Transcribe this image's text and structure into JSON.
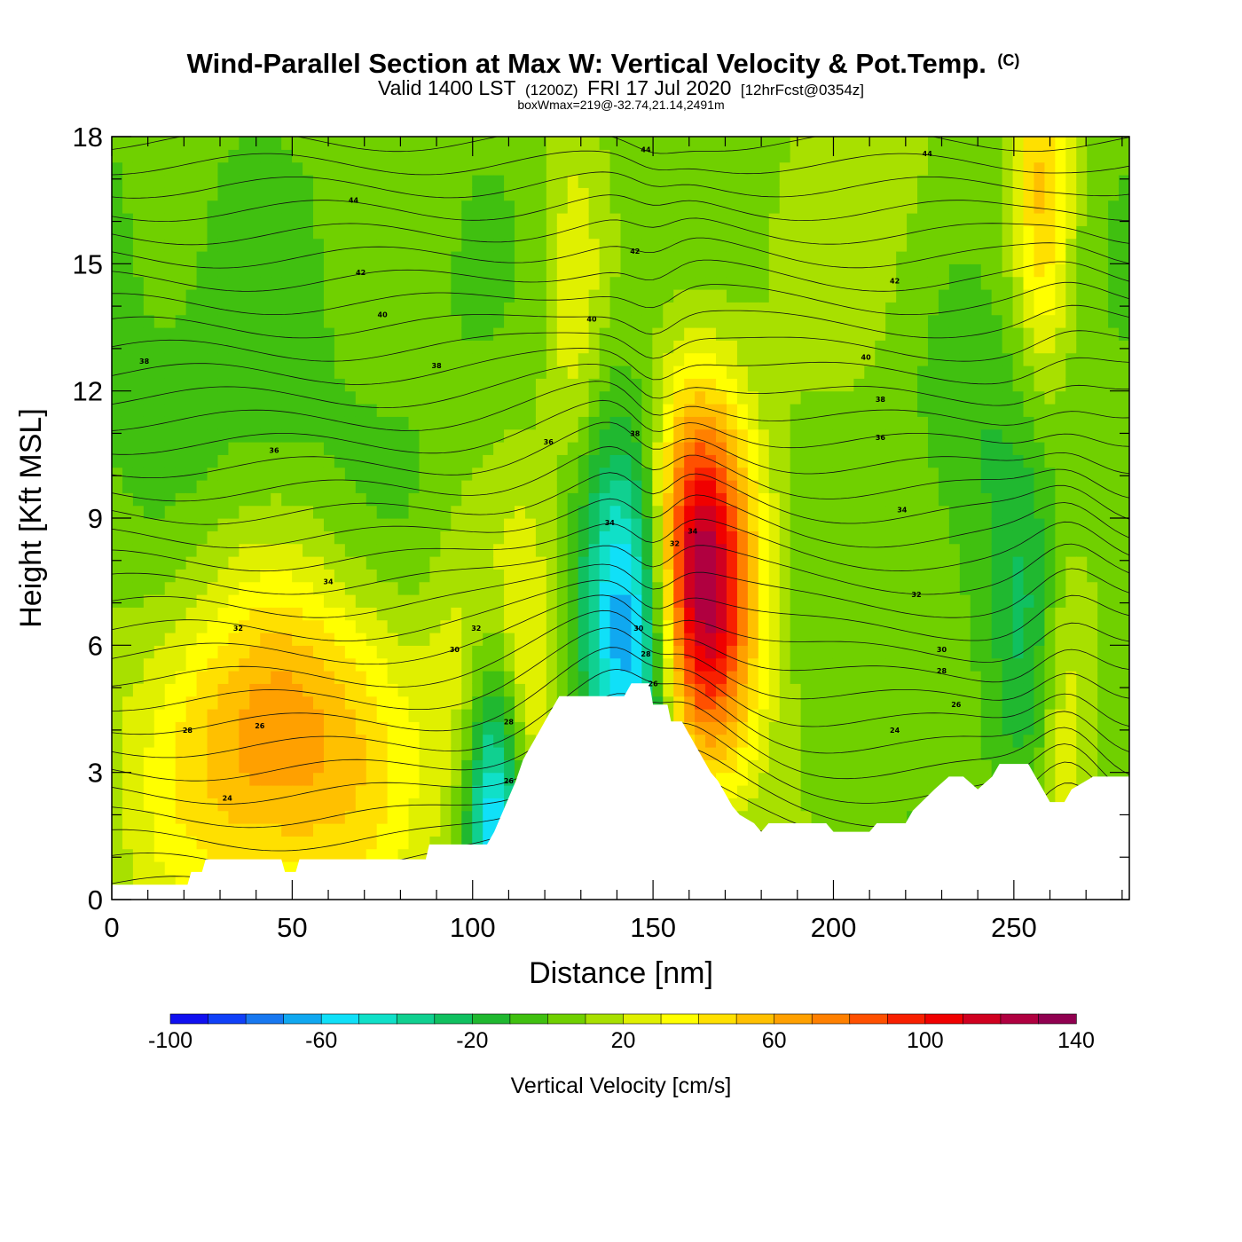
{
  "header": {
    "title": "Wind-Parallel Section at Max W: Vertical Velocity & Pot.Temp.",
    "copyright": "(C)",
    "subtitle_a": "Valid 1400 LST",
    "subtitle_b": "(1200Z)",
    "subtitle_c": "FRI 17 Jul 2020",
    "subtitle_d": "[12hrFcst@0354z]",
    "subtitle_line3": "boxWmax=219@-32.74,21.14,2491m"
  },
  "chart_data": {
    "type": "contour",
    "xlabel": "Distance [nm]",
    "ylabel": "Height [Kft MSL]",
    "xlim": [
      0,
      282
    ],
    "ylim": [
      0,
      18
    ],
    "x_ticks": [
      "0",
      "50",
      "100",
      "150",
      "200",
      "250"
    ],
    "y_ticks": [
      "0",
      "3",
      "6",
      "9",
      "12",
      "15",
      "18"
    ],
    "x_tick_values": [
      0,
      50,
      100,
      150,
      200,
      250
    ],
    "y_tick_values": [
      0,
      3,
      6,
      9,
      12,
      15,
      18
    ],
    "colorbar": {
      "title": "Vertical Velocity [cm/s]",
      "labels": [
        "-100",
        "-60",
        "-20",
        "20",
        "60",
        "100",
        "140"
      ],
      "label_values": [
        -100,
        -60,
        -20,
        20,
        60,
        100,
        140
      ],
      "range": [
        -100,
        140
      ],
      "step": 10,
      "colors": [
        "#1010f0",
        "#1040f8",
        "#1878f0",
        "#10a8f0",
        "#10e0f8",
        "#10e0c8",
        "#10d090",
        "#10c060",
        "#20b830",
        "#40c010",
        "#70d000",
        "#a8e000",
        "#e0f000",
        "#ffff00",
        "#ffe000",
        "#ffc000",
        "#ffa000",
        "#ff8000",
        "#ff5000",
        "#f82000",
        "#f00000",
        "#d00020",
        "#b00040",
        "#900050"
      ]
    },
    "terrain_profile": {
      "x": [
        0,
        21,
        22,
        25,
        26,
        47,
        48,
        51,
        52,
        87,
        88,
        104,
        106,
        108,
        110,
        112,
        114,
        116,
        118,
        120,
        122,
        124,
        142,
        144,
        149,
        150,
        154,
        155,
        158,
        160,
        162,
        164,
        166,
        168,
        170,
        172,
        174,
        178,
        180,
        182,
        198,
        200,
        210,
        212,
        220,
        222,
        228,
        232,
        236,
        240,
        244,
        246,
        254,
        256,
        258,
        260,
        264,
        266,
        272,
        282
      ],
      "y": [
        0.35,
        0.35,
        0.65,
        0.65,
        0.95,
        0.95,
        0.65,
        0.65,
        0.95,
        0.95,
        1.3,
        1.3,
        1.6,
        2.0,
        2.4,
        2.8,
        3.3,
        3.6,
        3.9,
        4.2,
        4.5,
        4.8,
        4.8,
        5.1,
        5.1,
        4.6,
        4.6,
        4.2,
        4.2,
        3.9,
        3.6,
        3.3,
        3.0,
        2.8,
        2.5,
        2.2,
        2.0,
        1.8,
        1.6,
        1.8,
        1.8,
        1.6,
        1.6,
        1.8,
        1.8,
        2.1,
        2.6,
        2.9,
        2.9,
        2.6,
        2.9,
        3.2,
        3.2,
        2.9,
        2.6,
        2.3,
        2.3,
        2.6,
        2.9,
        2.9
      ]
    },
    "w_features": [
      {
        "x": 40,
        "y": 3.8,
        "w": 35,
        "value": 55
      },
      {
        "x": 68,
        "y": 4.5,
        "w": 30,
        "value": 25
      },
      {
        "x": 110,
        "y": 5.5,
        "w": 15,
        "value": 40
      },
      {
        "x": 128,
        "y": 14.0,
        "w": 8,
        "value": 20
      },
      {
        "x": 147,
        "y": 6.5,
        "w": 15,
        "value": -95
      },
      {
        "x": 161,
        "y": 7.5,
        "w": 14,
        "value": 140
      },
      {
        "x": 258,
        "y": 17.0,
        "w": 8,
        "value": 45
      },
      {
        "x": 263,
        "y": 4.5,
        "w": 8,
        "value": 30
      },
      {
        "x": 215,
        "y": 16.0,
        "w": 25,
        "value": 15
      },
      {
        "x": 106,
        "y": 2.3,
        "w": 8,
        "value": -80
      },
      {
        "x": 175,
        "y": 6.5,
        "w": 15,
        "value": 20
      },
      {
        "x": 60,
        "y": 8.0,
        "w": 45,
        "value": -15
      },
      {
        "x": 240,
        "y": 12.0,
        "w": 20,
        "value": -15
      },
      {
        "x": 10,
        "y": 14.0,
        "w": 40,
        "value": -8
      },
      {
        "x": 255,
        "y": 5.5,
        "w": 10,
        "value": -25
      }
    ],
    "pot_temp_labels": [
      {
        "text": "44",
        "x": 67,
        "y": 16.5
      },
      {
        "text": "42",
        "x": 69,
        "y": 14.8
      },
      {
        "text": "40",
        "x": 75,
        "y": 13.8
      },
      {
        "text": "38",
        "x": 9,
        "y": 12.7
      },
      {
        "text": "38",
        "x": 90,
        "y": 12.6
      },
      {
        "text": "36",
        "x": 45,
        "y": 10.6
      },
      {
        "text": "34",
        "x": 60,
        "y": 7.5
      },
      {
        "text": "32",
        "x": 35,
        "y": 6.4
      },
      {
        "text": "30",
        "x": 95,
        "y": 5.9
      },
      {
        "text": "28",
        "x": 21,
        "y": 4.0
      },
      {
        "text": "26",
        "x": 41,
        "y": 4.1
      },
      {
        "text": "24",
        "x": 32,
        "y": 2.4
      },
      {
        "text": "32",
        "x": 101,
        "y": 6.4
      },
      {
        "text": "28",
        "x": 110,
        "y": 4.2
      },
      {
        "text": "26",
        "x": 110,
        "y": 2.8
      },
      {
        "text": "36",
        "x": 121,
        "y": 10.8
      },
      {
        "text": "40",
        "x": 133,
        "y": 13.7
      },
      {
        "text": "34",
        "x": 138,
        "y": 8.9
      },
      {
        "text": "44",
        "x": 148,
        "y": 17.7
      },
      {
        "text": "42",
        "x": 145,
        "y": 15.3
      },
      {
        "text": "38",
        "x": 145,
        "y": 11.0
      },
      {
        "text": "30",
        "x": 146,
        "y": 6.4
      },
      {
        "text": "28",
        "x": 148,
        "y": 5.8
      },
      {
        "text": "26",
        "x": 150,
        "y": 5.1
      },
      {
        "text": "32",
        "x": 156,
        "y": 8.4
      },
      {
        "text": "34",
        "x": 161,
        "y": 8.7
      },
      {
        "text": "44",
        "x": 226,
        "y": 17.6
      },
      {
        "text": "42",
        "x": 217,
        "y": 14.6
      },
      {
        "text": "40",
        "x": 209,
        "y": 12.8
      },
      {
        "text": "38",
        "x": 213,
        "y": 11.8
      },
      {
        "text": "36",
        "x": 213,
        "y": 10.9
      },
      {
        "text": "34",
        "x": 219,
        "y": 9.2
      },
      {
        "text": "32",
        "x": 223,
        "y": 7.2
      },
      {
        "text": "30",
        "x": 230,
        "y": 5.9
      },
      {
        "text": "28",
        "x": 230,
        "y": 5.4
      },
      {
        "text": "26",
        "x": 234,
        "y": 4.6
      },
      {
        "text": "24",
        "x": 217,
        "y": 4.0
      }
    ]
  }
}
